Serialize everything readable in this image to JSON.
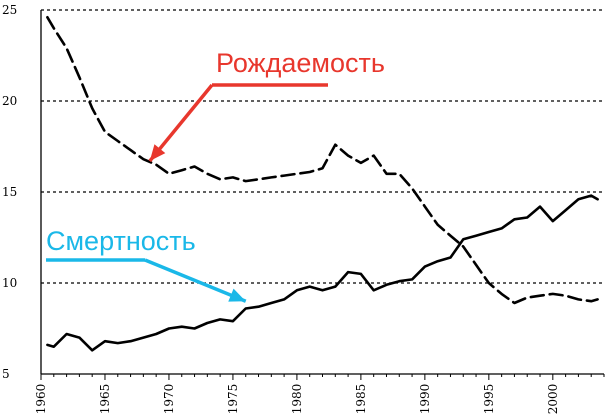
{
  "chart_data": {
    "type": "line",
    "title": "",
    "xlabel": "",
    "ylabel": "",
    "xlim": [
      1960,
      2004
    ],
    "ylim": [
      5,
      25
    ],
    "y_ticks": [
      5,
      10,
      15,
      20,
      25
    ],
    "x_ticks": [
      1960,
      1965,
      1970,
      1975,
      1980,
      1985,
      1990,
      1995,
      2000
    ],
    "grid": "horizontal-dashed",
    "series": [
      {
        "name": "Рождаемость",
        "style": "dashed",
        "color": "#000000",
        "x": [
          1960.5,
          1961,
          1962,
          1963,
          1964,
          1965,
          1966,
          1967,
          1968,
          1969,
          1970,
          1971,
          1972,
          1973,
          1974,
          1975,
          1976,
          1977,
          1978,
          1979,
          1980,
          1981,
          1982,
          1983,
          1984,
          1985,
          1986,
          1987,
          1988,
          1989,
          1990,
          1991,
          1992,
          1993,
          1994,
          1995,
          1996,
          1997,
          1998,
          1999,
          2000,
          2001,
          2002,
          2003,
          2003.5
        ],
        "y": [
          24.6,
          24.0,
          22.9,
          21.3,
          19.6,
          18.3,
          17.8,
          17.3,
          16.8,
          16.5,
          16.0,
          16.2,
          16.4,
          16.0,
          15.7,
          15.8,
          15.6,
          15.7,
          15.8,
          15.9,
          16.0,
          16.1,
          16.3,
          17.6,
          17.0,
          16.6,
          17.0,
          16.0,
          16.0,
          15.2,
          14.2,
          13.2,
          12.6,
          12.0,
          11.0,
          10.0,
          9.4,
          8.9,
          9.2,
          9.3,
          9.4,
          9.3,
          9.1,
          9.0,
          9.1
        ]
      },
      {
        "name": "Смертность",
        "style": "solid",
        "color": "#000000",
        "x": [
          1960.5,
          1961,
          1962,
          1963,
          1964,
          1965,
          1966,
          1967,
          1968,
          1969,
          1970,
          1971,
          1972,
          1973,
          1974,
          1975,
          1976,
          1977,
          1978,
          1979,
          1980,
          1981,
          1982,
          1983,
          1984,
          1985,
          1986,
          1987,
          1988,
          1989,
          1990,
          1991,
          1992,
          1993,
          1994,
          1995,
          1996,
          1997,
          1998,
          1999,
          2000,
          2001,
          2002,
          2003,
          2003.5
        ],
        "y": [
          6.6,
          6.5,
          7.2,
          7.0,
          6.3,
          6.8,
          6.7,
          6.8,
          7.0,
          7.2,
          7.5,
          7.6,
          7.5,
          7.8,
          8.0,
          7.9,
          8.6,
          8.7,
          8.9,
          9.1,
          9.6,
          9.8,
          9.6,
          9.8,
          10.6,
          10.5,
          9.6,
          9.9,
          10.1,
          10.2,
          10.9,
          11.2,
          11.4,
          12.4,
          12.6,
          12.8,
          13.0,
          13.5,
          13.6,
          14.2,
          13.4,
          14.0,
          14.6,
          14.8,
          14.6
        ]
      }
    ],
    "annotations": [
      {
        "text": "Рождаемость",
        "color": "#e8372d",
        "target": [
          1968.5,
          16.7
        ]
      },
      {
        "text": "Смертность",
        "color": "#1ab8e8",
        "target": [
          1976,
          9.0
        ]
      }
    ]
  }
}
